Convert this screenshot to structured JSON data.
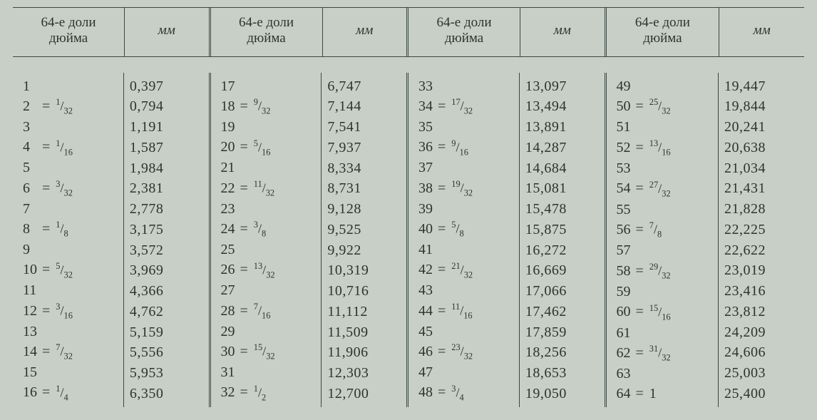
{
  "headers": {
    "fraction_label": "64-е доли\nдюйма",
    "mm_label": "мм"
  },
  "style": {
    "background_color": "#c8cfc7",
    "text_color": "#2a3530",
    "rule_color": "#3a4842",
    "font_family": "Georgia, serif",
    "header_fontsize": 19,
    "body_fontsize": 20
  },
  "columns": [
    {
      "rows": [
        {
          "n": "1",
          "eq": null,
          "mm": "0,397"
        },
        {
          "n": "2",
          "eq": {
            "num": "1",
            "den": "32"
          },
          "mm": "0,794"
        },
        {
          "n": "3",
          "eq": null,
          "mm": "1,191"
        },
        {
          "n": "4",
          "eq": {
            "num": "1",
            "den": "16"
          },
          "mm": "1,587"
        },
        {
          "n": "5",
          "eq": null,
          "mm": "1,984"
        },
        {
          "n": "6",
          "eq": {
            "num": "3",
            "den": "32"
          },
          "mm": "2,381"
        },
        {
          "n": "7",
          "eq": null,
          "mm": "2,778"
        },
        {
          "n": "8",
          "eq": {
            "num": "1",
            "den": "8"
          },
          "mm": "3,175"
        },
        {
          "n": "9",
          "eq": null,
          "mm": "3,572"
        },
        {
          "n": "10",
          "eq": {
            "num": "5",
            "den": "32"
          },
          "mm": "3,969"
        },
        {
          "n": "11",
          "eq": null,
          "mm": "4,366"
        },
        {
          "n": "12",
          "eq": {
            "num": "3",
            "den": "16"
          },
          "mm": "4,762"
        },
        {
          "n": "13",
          "eq": null,
          "mm": "5,159"
        },
        {
          "n": "14",
          "eq": {
            "num": "7",
            "den": "32"
          },
          "mm": "5,556"
        },
        {
          "n": "15",
          "eq": null,
          "mm": "5,953"
        },
        {
          "n": "16",
          "eq": {
            "num": "1",
            "den": "4"
          },
          "mm": "6,350"
        }
      ]
    },
    {
      "rows": [
        {
          "n": "17",
          "eq": null,
          "mm": "6,747"
        },
        {
          "n": "18",
          "eq": {
            "num": "9",
            "den": "32"
          },
          "mm": "7,144"
        },
        {
          "n": "19",
          "eq": null,
          "mm": "7,541"
        },
        {
          "n": "20",
          "eq": {
            "num": "5",
            "den": "16"
          },
          "mm": "7,937"
        },
        {
          "n": "21",
          "eq": null,
          "mm": "8,334"
        },
        {
          "n": "22",
          "eq": {
            "num": "11",
            "den": "32"
          },
          "mm": "8,731"
        },
        {
          "n": "23",
          "eq": null,
          "mm": "9,128"
        },
        {
          "n": "24",
          "eq": {
            "num": "3",
            "den": "8"
          },
          "mm": "9,525"
        },
        {
          "n": "25",
          "eq": null,
          "mm": "9,922"
        },
        {
          "n": "26",
          "eq": {
            "num": "13",
            "den": "32"
          },
          "mm": "10,319"
        },
        {
          "n": "27",
          "eq": null,
          "mm": "10,716"
        },
        {
          "n": "28",
          "eq": {
            "num": "7",
            "den": "16"
          },
          "mm": "11,112"
        },
        {
          "n": "29",
          "eq": null,
          "mm": "11,509"
        },
        {
          "n": "30",
          "eq": {
            "num": "15",
            "den": "32"
          },
          "mm": "11,906"
        },
        {
          "n": "31",
          "eq": null,
          "mm": "12,303"
        },
        {
          "n": "32",
          "eq": {
            "num": "1",
            "den": "2"
          },
          "mm": "12,700"
        }
      ]
    },
    {
      "rows": [
        {
          "n": "33",
          "eq": null,
          "mm": "13,097"
        },
        {
          "n": "34",
          "eq": {
            "num": "17",
            "den": "32"
          },
          "mm": "13,494"
        },
        {
          "n": "35",
          "eq": null,
          "mm": "13,891"
        },
        {
          "n": "36",
          "eq": {
            "num": "9",
            "den": "16"
          },
          "mm": "14,287"
        },
        {
          "n": "37",
          "eq": null,
          "mm": "14,684"
        },
        {
          "n": "38",
          "eq": {
            "num": "19",
            "den": "32"
          },
          "mm": "15,081"
        },
        {
          "n": "39",
          "eq": null,
          "mm": "15,478"
        },
        {
          "n": "40",
          "eq": {
            "num": "5",
            "den": "8"
          },
          "mm": "15,875"
        },
        {
          "n": "41",
          "eq": null,
          "mm": "16,272"
        },
        {
          "n": "42",
          "eq": {
            "num": "21",
            "den": "32"
          },
          "mm": "16,669"
        },
        {
          "n": "43",
          "eq": null,
          "mm": "17,066"
        },
        {
          "n": "44",
          "eq": {
            "num": "11",
            "den": "16"
          },
          "mm": "17,462"
        },
        {
          "n": "45",
          "eq": null,
          "mm": "17,859"
        },
        {
          "n": "46",
          "eq": {
            "num": "23",
            "den": "32"
          },
          "mm": "18,256"
        },
        {
          "n": "47",
          "eq": null,
          "mm": "18,653"
        },
        {
          "n": "48",
          "eq": {
            "num": "3",
            "den": "4"
          },
          "mm": "19,050"
        }
      ]
    },
    {
      "rows": [
        {
          "n": "49",
          "eq": null,
          "mm": "19,447"
        },
        {
          "n": "50",
          "eq": {
            "num": "25",
            "den": "32"
          },
          "mm": "19,844"
        },
        {
          "n": "51",
          "eq": null,
          "mm": "20,241"
        },
        {
          "n": "52",
          "eq": {
            "num": "13",
            "den": "16"
          },
          "mm": "20,638"
        },
        {
          "n": "53",
          "eq": null,
          "mm": "21,034"
        },
        {
          "n": "54",
          "eq": {
            "num": "27",
            "den": "32"
          },
          "mm": "21,431"
        },
        {
          "n": "55",
          "eq": null,
          "mm": "21,828"
        },
        {
          "n": "56",
          "eq": {
            "num": "7",
            "den": "8"
          },
          "mm": "22,225"
        },
        {
          "n": "57",
          "eq": null,
          "mm": "22,622"
        },
        {
          "n": "58",
          "eq": {
            "num": "29",
            "den": "32"
          },
          "mm": "23,019"
        },
        {
          "n": "59",
          "eq": null,
          "mm": "23,416"
        },
        {
          "n": "60",
          "eq": {
            "num": "15",
            "den": "16"
          },
          "mm": "23,812"
        },
        {
          "n": "61",
          "eq": null,
          "mm": "24,209"
        },
        {
          "n": "62",
          "eq": {
            "num": "31",
            "den": "32"
          },
          "mm": "24,606"
        },
        {
          "n": "63",
          "eq": null,
          "mm": "25,003"
        },
        {
          "n": "64",
          "eq": "1",
          "mm": "25,400"
        }
      ]
    }
  ]
}
